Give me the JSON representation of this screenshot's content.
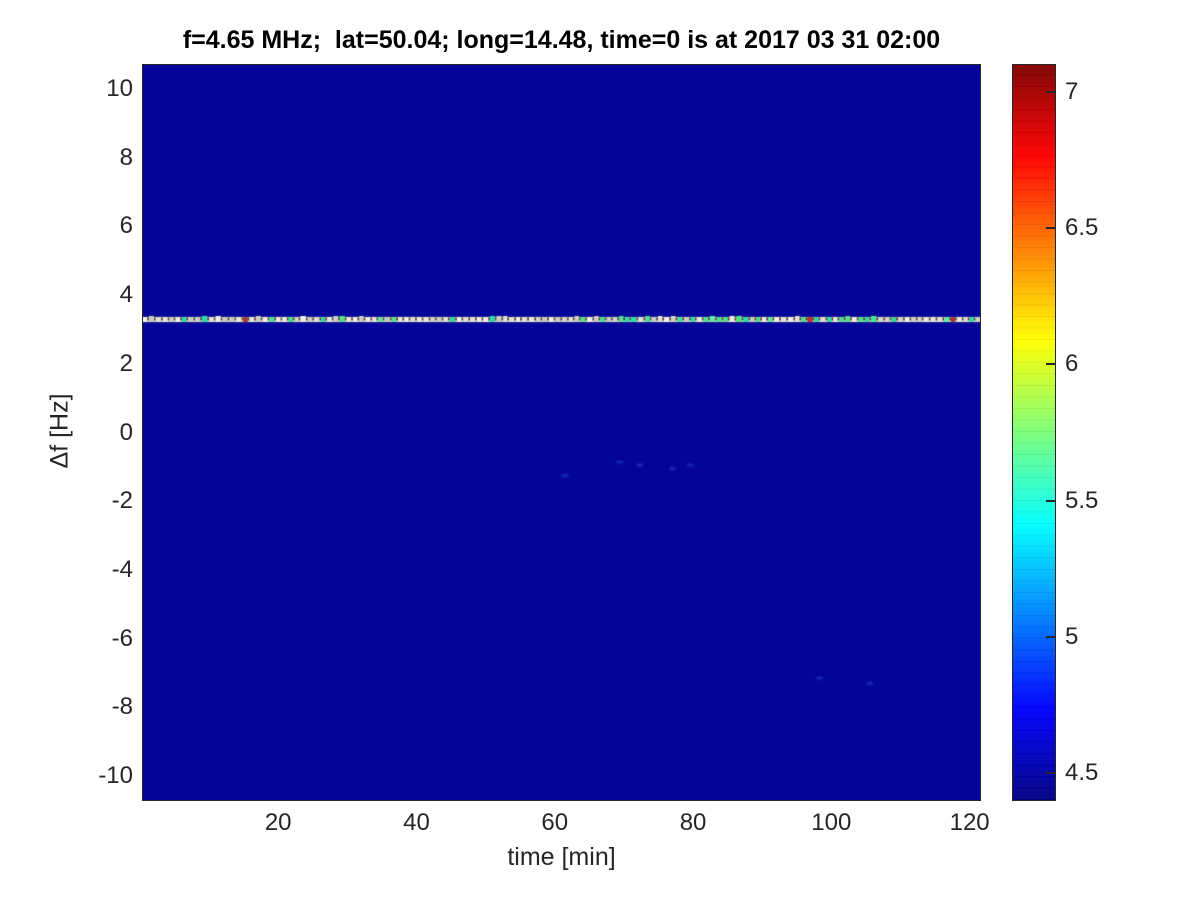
{
  "chart_data": {
    "type": "heatmap",
    "title": "f=4.65 MHz;  lat=50.04; long=14.48, time=0 is at 2017 03 31 02:00",
    "xlabel": "time [min]",
    "ylabel": "Δf [Hz]",
    "x_range": [
      0.45,
      121.5
    ],
    "y_range": [
      -10.7,
      10.7
    ],
    "x_ticks": [
      20,
      40,
      60,
      80,
      100,
      120
    ],
    "y_ticks": [
      10,
      8,
      6,
      4,
      2,
      0,
      -2,
      -4,
      -6,
      -8,
      -10
    ],
    "grid": false,
    "background_value": 4.45,
    "colorbar": {
      "colormap": "jet",
      "range": [
        4.4,
        7.1
      ],
      "ticks": [
        7,
        6.5,
        6,
        5.5,
        5,
        4.5
      ],
      "jet_stops": [
        {
          "pct": 0,
          "color": "#000084"
        },
        {
          "pct": 12.5,
          "color": "#0000ff"
        },
        {
          "pct": 37.5,
          "color": "#00ffff"
        },
        {
          "pct": 50,
          "color": "#7dff7a"
        },
        {
          "pct": 62.5,
          "color": "#ffff00"
        },
        {
          "pct": 87.5,
          "color": "#ff0000"
        },
        {
          "pct": 100,
          "color": "#800000"
        }
      ]
    },
    "signal_line": {
      "delta_f_hz": 3.3,
      "time_span_min": [
        0.45,
        121.5
      ],
      "typical_value": 5.8,
      "peak_value": 6.4,
      "appearance": "beaded dashed ridge: pale segments with bright green bursts and occasional dark red gaps",
      "burst_time_ranges_min": [
        [
          2,
          8
        ],
        [
          63,
          106
        ]
      ]
    },
    "faint_spots": [
      {
        "t_min": 61.5,
        "delta_f_hz": -1.25,
        "value": 4.55
      },
      {
        "t_min": 69.4,
        "delta_f_hz": -0.86,
        "value": 4.6
      },
      {
        "t_min": 72.3,
        "delta_f_hz": -0.95,
        "value": 4.6
      },
      {
        "t_min": 77.0,
        "delta_f_hz": -1.05,
        "value": 4.55
      },
      {
        "t_min": 79.6,
        "delta_f_hz": -0.95,
        "value": 4.55
      },
      {
        "t_min": 98.3,
        "delta_f_hz": -7.15,
        "value": 4.5
      },
      {
        "t_min": 105.6,
        "delta_f_hz": -7.3,
        "value": 4.5
      }
    ],
    "colors": {
      "plot_background": "#04049a",
      "axis_color": "#262626",
      "title_color": "#000000",
      "halo": "#0c0c95",
      "halo_inner": "#15159d",
      "bead_base": "#d9dcc9",
      "bead_pale": [
        "#e8e9d8",
        "#dfe2cf",
        "#d2d6c2",
        "#f0f0e2",
        "#c9cfbe"
      ],
      "bead_green": [
        "#49e492",
        "#35da9b",
        "#63ec9e",
        "#2adfa8",
        "#52e57c"
      ],
      "bead_red": "#b23726",
      "bead_gap": "#55343f"
    }
  }
}
